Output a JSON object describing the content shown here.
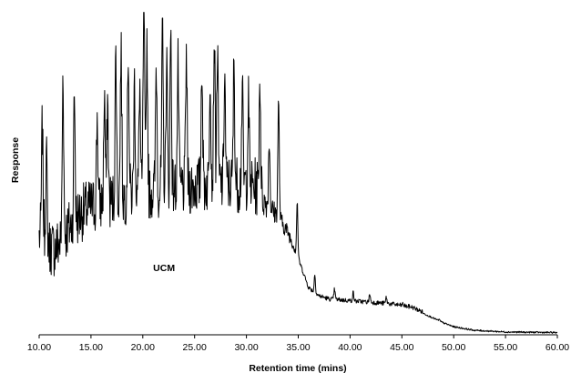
{
  "chart_data": {
    "type": "line",
    "xlabel": "Retention time (mins)",
    "ylabel": "Response",
    "xlim": [
      10,
      60
    ],
    "ylim": [
      0,
      100
    ],
    "xticks": [
      "10.00",
      "15.00",
      "20.00",
      "25.00",
      "30.00",
      "35.00",
      "40.00",
      "45.00",
      "50.00",
      "55.00",
      "60.00"
    ],
    "grid": false,
    "legend": "none",
    "line_color": "#000000",
    "annotations": [
      {
        "text": "UCM",
        "x": 21.0,
        "y": 19.5
      }
    ],
    "envelope": [
      [
        10.0,
        24
      ],
      [
        10.5,
        25
      ],
      [
        11.0,
        21
      ],
      [
        11.5,
        20
      ],
      [
        12.0,
        22
      ],
      [
        12.5,
        25
      ],
      [
        13.0,
        27
      ],
      [
        13.5,
        29
      ],
      [
        14.0,
        31
      ],
      [
        15.0,
        33
      ],
      [
        16.0,
        34
      ],
      [
        17.0,
        35
      ],
      [
        18.0,
        36
      ],
      [
        19.0,
        37
      ],
      [
        20.0,
        37
      ],
      [
        21.0,
        38
      ],
      [
        22.0,
        38.5
      ],
      [
        23.0,
        39
      ],
      [
        24.0,
        39
      ],
      [
        25.0,
        39.5
      ],
      [
        26.0,
        40
      ],
      [
        27.0,
        40
      ],
      [
        28.0,
        40
      ],
      [
        29.0,
        40
      ],
      [
        30.0,
        40
      ],
      [
        31.0,
        39
      ],
      [
        32.0,
        37
      ],
      [
        33.0,
        34
      ],
      [
        34.0,
        30
      ],
      [
        35.0,
        23
      ],
      [
        36.0,
        14
      ],
      [
        37.0,
        11.5
      ],
      [
        38.0,
        10.5
      ],
      [
        40.0,
        10
      ],
      [
        42.0,
        9.5
      ],
      [
        44.0,
        9
      ],
      [
        45.0,
        8.5
      ],
      [
        46.0,
        8
      ],
      [
        47.0,
        6.5
      ],
      [
        48.0,
        5
      ],
      [
        49.0,
        3.5
      ],
      [
        50.0,
        2.3
      ],
      [
        52.0,
        1.2
      ],
      [
        55.0,
        0.7
      ],
      [
        60.0,
        0.5
      ]
    ],
    "peaks": [
      [
        10.3,
        58
      ],
      [
        10.7,
        48
      ],
      [
        12.3,
        74
      ],
      [
        13.4,
        68
      ],
      [
        15.6,
        61
      ],
      [
        16.3,
        68
      ],
      [
        16.6,
        66
      ],
      [
        17.4,
        81
      ],
      [
        17.9,
        82
      ],
      [
        18.6,
        82
      ],
      [
        19.2,
        71
      ],
      [
        19.7,
        71
      ],
      [
        20.1,
        98
      ],
      [
        20.4,
        84
      ],
      [
        21.3,
        77
      ],
      [
        21.9,
        85
      ],
      [
        22.3,
        79
      ],
      [
        22.7,
        87
      ],
      [
        23.4,
        76
      ],
      [
        24.2,
        80
      ],
      [
        25.7,
        79
      ],
      [
        26.5,
        76
      ],
      [
        26.9,
        86
      ],
      [
        27.2,
        81
      ],
      [
        27.9,
        74
      ],
      [
        28.8,
        77
      ],
      [
        29.6,
        69
      ],
      [
        30.2,
        65
      ],
      [
        31.3,
        73
      ],
      [
        32.2,
        57
      ],
      [
        33.1,
        69
      ],
      [
        34.9,
        40
      ],
      [
        36.6,
        18
      ],
      [
        38.5,
        13.5
      ],
      [
        40.3,
        12.5
      ],
      [
        41.9,
        12
      ],
      [
        43.5,
        11
      ],
      [
        45.1,
        9
      ],
      [
        48.6,
        4.5
      ]
    ]
  }
}
